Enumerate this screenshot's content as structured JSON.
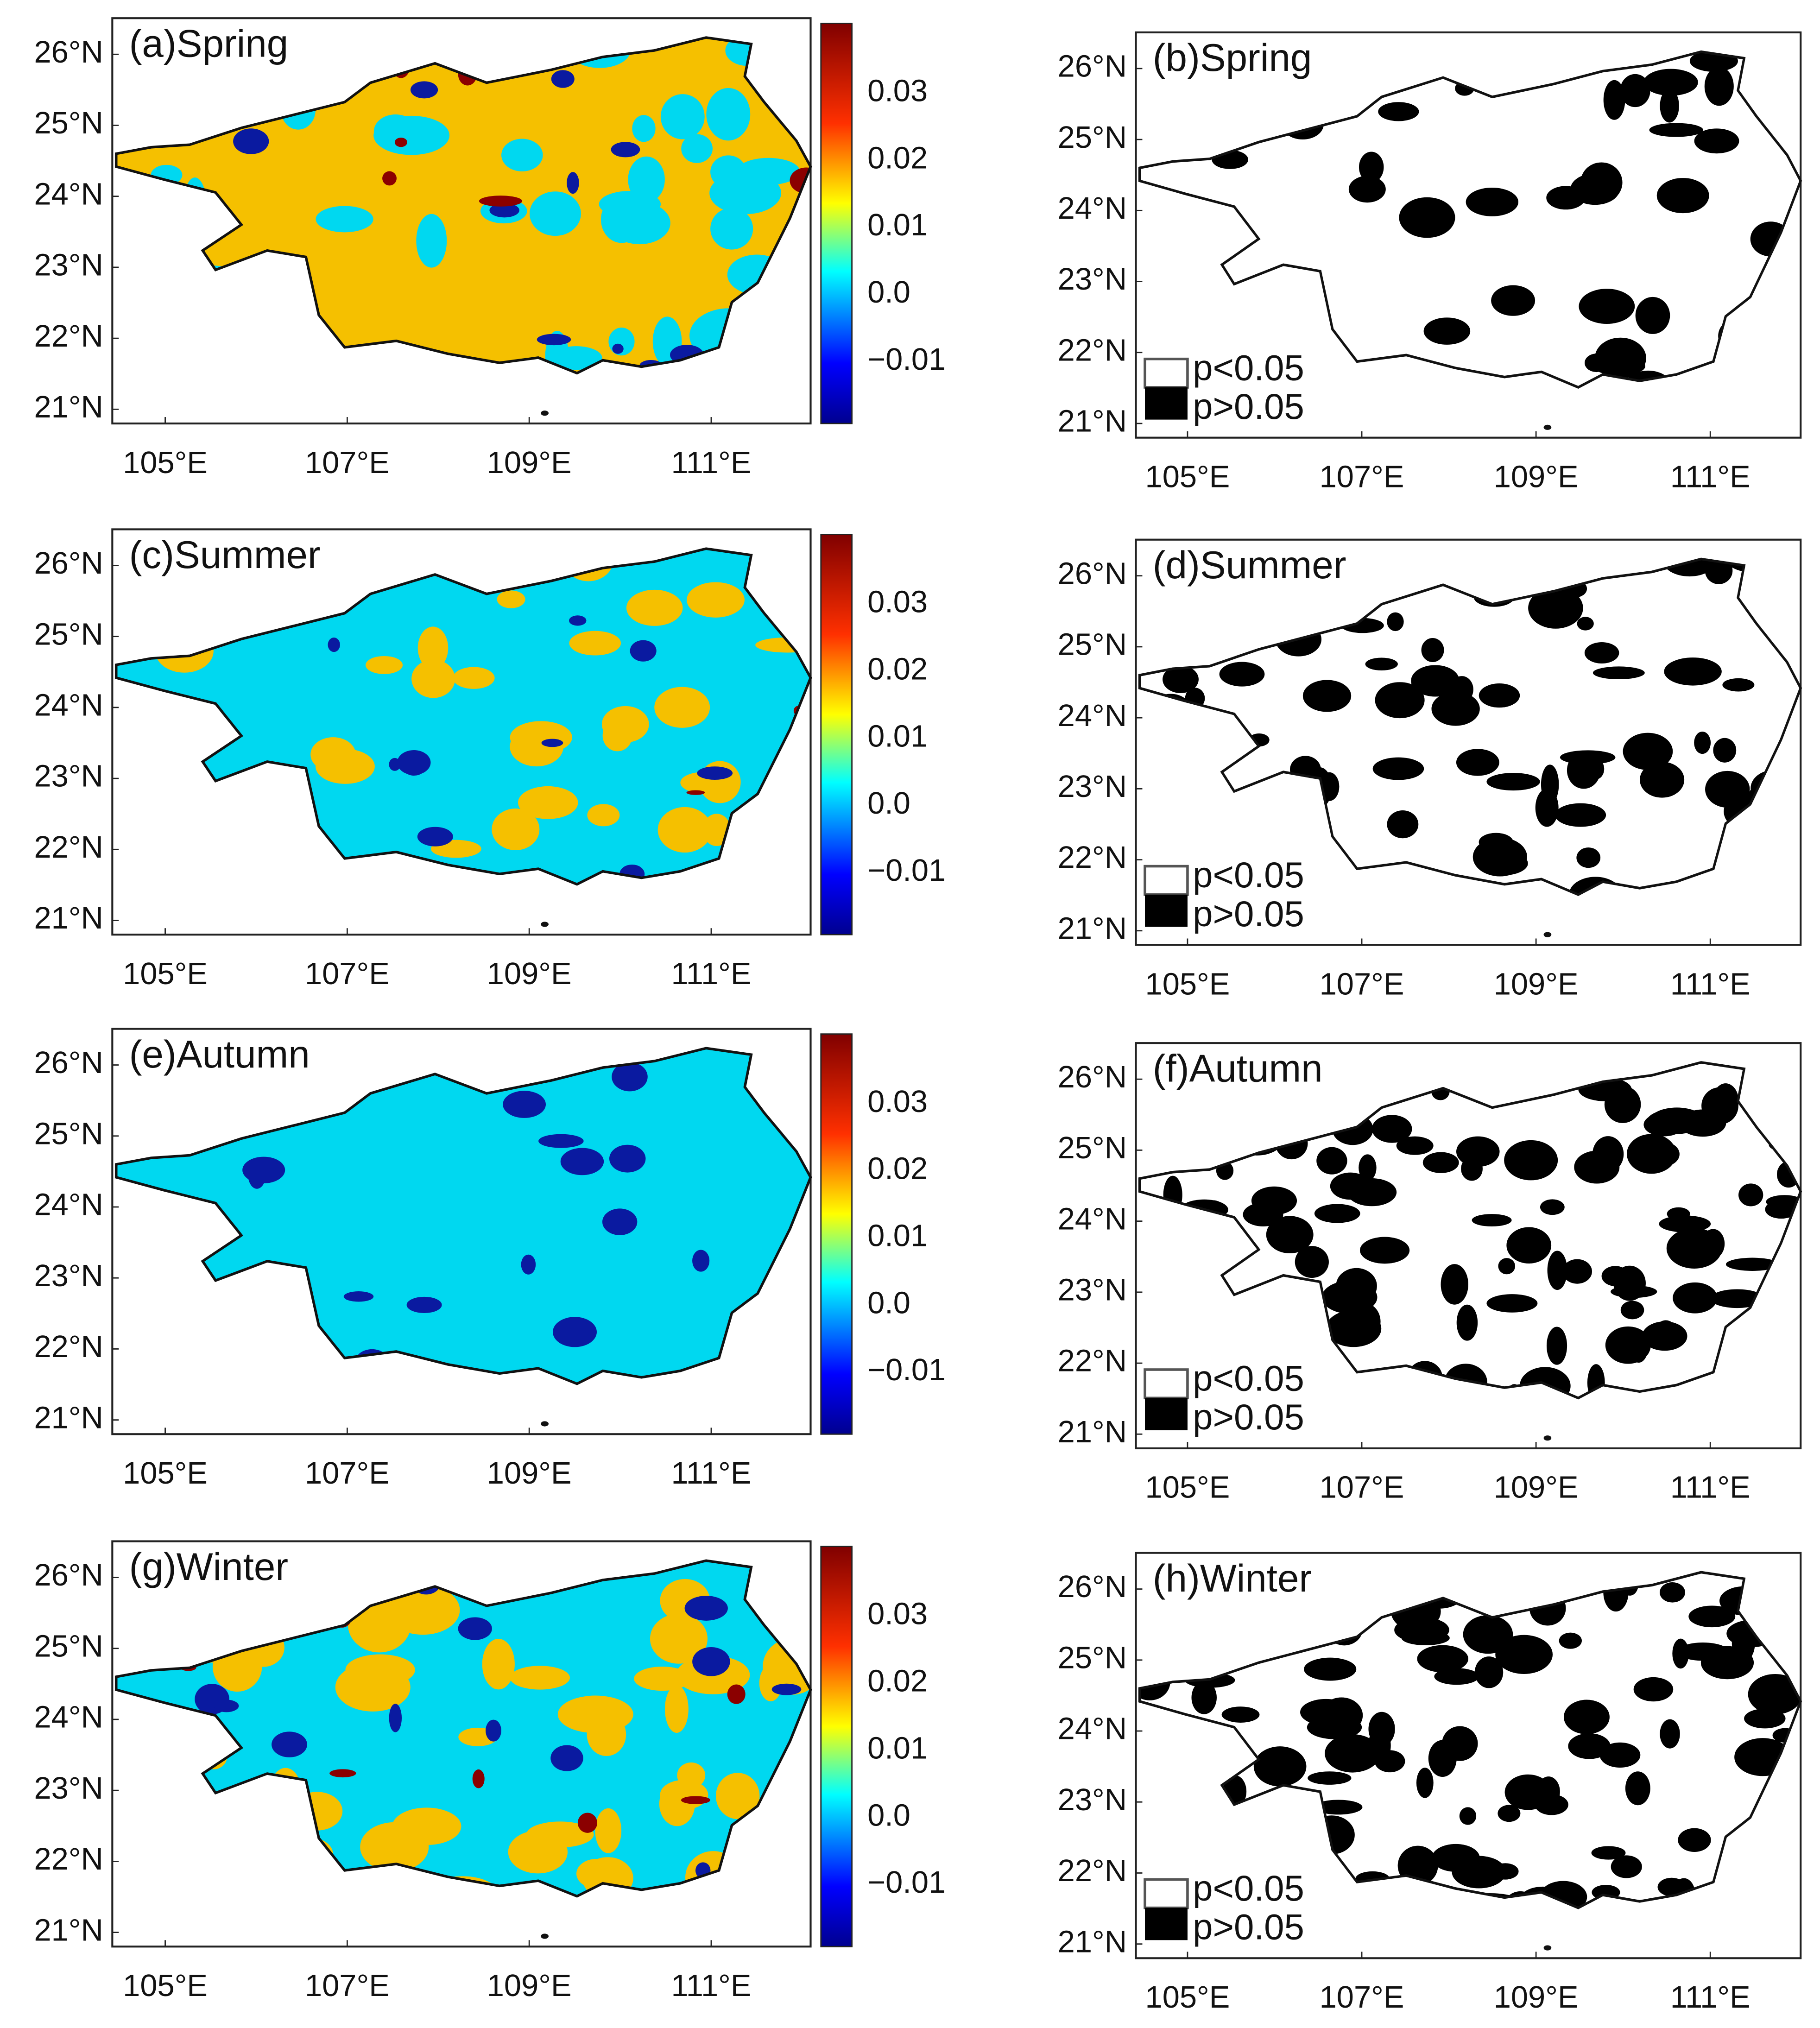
{
  "lat_labels": [
    "26°N",
    "25°N",
    "24°N",
    "23°N",
    "22°N",
    "21°N"
  ],
  "lon_labels": [
    "105°E",
    "107°E",
    "109°E",
    "111°E"
  ],
  "colorbar_labels": [
    "0.03",
    "0.02",
    "0.01",
    "0.0",
    "−0.01"
  ],
  "legend": [
    "p<0.05",
    "p>0.05"
  ],
  "panels": [
    {
      "title": "(a)Spring"
    },
    {
      "title": "(b)Spring"
    },
    {
      "title": "(c)Summer"
    },
    {
      "title": "(d)Summer"
    },
    {
      "title": "(e)Autumn"
    },
    {
      "title": "(f)Autumn"
    },
    {
      "title": "(g)Winter"
    },
    {
      "title": "(h)Winter"
    }
  ]
}
